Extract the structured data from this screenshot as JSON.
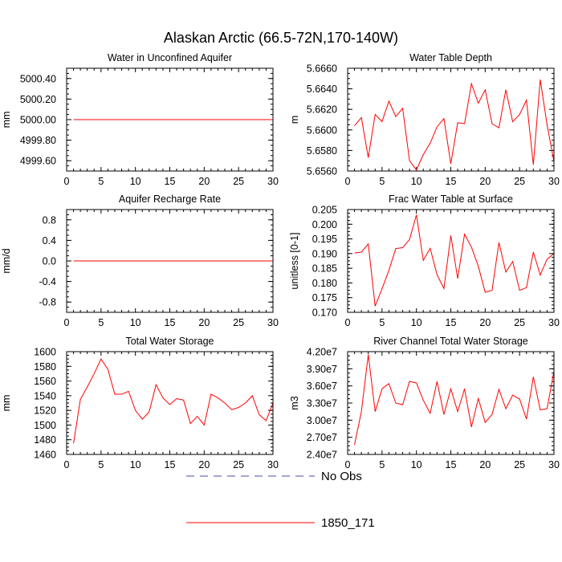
{
  "figure": {
    "title": "Alaskan Arctic (66.5-72N,170-140W)"
  },
  "legend": {
    "entries": [
      {
        "label": "No Obs",
        "color": "#4a4aa8",
        "style": "dashed"
      },
      {
        "label": "1850_171",
        "color": "#ff0000",
        "style": "solid"
      }
    ]
  },
  "chart_data": [
    {
      "type": "line",
      "title": "Water in Unconfined Aquifer",
      "ylabel": "mm",
      "xlim": [
        0,
        30
      ],
      "ylim": [
        4999.5,
        5000.5
      ],
      "xticks": [
        0,
        5,
        10,
        15,
        20,
        25,
        30
      ],
      "yticks": [
        4999.6,
        4999.8,
        5000.0,
        5000.2,
        5000.4
      ],
      "ytick_labels": [
        "4999.60",
        "4999.80",
        "5000.00",
        "5000.20",
        "5000.40"
      ],
      "series": [
        {
          "name": "1850_171",
          "x": [
            1,
            30
          ],
          "values": [
            5000.0,
            5000.0
          ]
        }
      ]
    },
    {
      "type": "line",
      "title": "Water Table Depth",
      "ylabel": "m",
      "xlim": [
        0,
        30
      ],
      "ylim": [
        5.656,
        5.666
      ],
      "xticks": [
        0,
        5,
        10,
        15,
        20,
        25,
        30
      ],
      "yticks": [
        5.656,
        5.658,
        5.66,
        5.662,
        5.664,
        5.666
      ],
      "ytick_labels": [
        "5.6560",
        "5.6580",
        "5.6600",
        "5.6620",
        "5.6640",
        "5.6660"
      ],
      "series": [
        {
          "name": "1850_171",
          "x": [
            1,
            2,
            3,
            4,
            5,
            6,
            7,
            8,
            9,
            10,
            11,
            12,
            13,
            14,
            15,
            16,
            17,
            18,
            19,
            20,
            21,
            22,
            23,
            24,
            25,
            26,
            27,
            28,
            29,
            30
          ],
          "values": [
            5.6604,
            5.6612,
            5.6573,
            5.6615,
            5.6608,
            5.6628,
            5.6613,
            5.6621,
            5.657,
            5.6561,
            5.6576,
            5.6587,
            5.6603,
            5.6611,
            5.6567,
            5.6607,
            5.6606,
            5.6645,
            5.6626,
            5.6639,
            5.6606,
            5.6602,
            5.6639,
            5.6608,
            5.6615,
            5.6629,
            5.6566,
            5.6649,
            5.6605,
            5.6569
          ]
        }
      ]
    },
    {
      "type": "line",
      "title": "Aquifer Recharge Rate",
      "ylabel": "mm/d",
      "xlim": [
        0,
        30
      ],
      "ylim": [
        -1.0,
        1.0
      ],
      "xticks": [
        0,
        5,
        10,
        15,
        20,
        25,
        30
      ],
      "yticks": [
        -0.8,
        -0.4,
        0.0,
        0.4,
        0.8
      ],
      "ytick_labels": [
        "-0.8",
        "-0.4",
        "0.0",
        "0.4",
        "0.8"
      ],
      "series": [
        {
          "name": "1850_171",
          "x": [
            1,
            30
          ],
          "values": [
            0.0,
            0.0
          ]
        }
      ]
    },
    {
      "type": "line",
      "title": "Frac Water Table at Surface",
      "ylabel": "unitless [0-1]",
      "xlim": [
        0,
        30
      ],
      "ylim": [
        0.17,
        0.205
      ],
      "xticks": [
        0,
        5,
        10,
        15,
        20,
        25,
        30
      ],
      "yticks": [
        0.17,
        0.175,
        0.18,
        0.185,
        0.19,
        0.195,
        0.2,
        0.205
      ],
      "ytick_labels": [
        "0.170",
        "0.175",
        "0.180",
        "0.185",
        "0.190",
        "0.195",
        "0.200",
        "0.205"
      ],
      "series": [
        {
          "name": "1850_171",
          "x": [
            1,
            2,
            3,
            4,
            5,
            6,
            7,
            8,
            9,
            10,
            11,
            12,
            13,
            14,
            15,
            16,
            17,
            18,
            19,
            20,
            21,
            22,
            23,
            24,
            25,
            26,
            27,
            28,
            29,
            30
          ],
          "values": [
            0.1902,
            0.1905,
            0.1933,
            0.1721,
            0.178,
            0.1843,
            0.1917,
            0.192,
            0.1948,
            0.2032,
            0.1877,
            0.1918,
            0.1828,
            0.1781,
            0.1962,
            0.1815,
            0.1966,
            0.1922,
            0.1857,
            0.1768,
            0.1775,
            0.1938,
            0.1837,
            0.1873,
            0.1775,
            0.1784,
            0.1905,
            0.1827,
            0.1881,
            0.19
          ]
        }
      ]
    },
    {
      "type": "line",
      "title": "Total Water Storage",
      "ylabel": "mm",
      "xlim": [
        0,
        30
      ],
      "ylim": [
        1460,
        1600
      ],
      "xticks": [
        0,
        5,
        10,
        15,
        20,
        25,
        30
      ],
      "yticks": [
        1460,
        1480,
        1500,
        1520,
        1540,
        1560,
        1580,
        1600
      ],
      "ytick_labels": [
        "1460",
        "1480",
        "1500",
        "1520",
        "1540",
        "1560",
        "1580",
        "1600"
      ],
      "series": [
        {
          "name": "1850_171",
          "x": [
            1,
            2,
            3,
            4,
            5,
            6,
            7,
            8,
            9,
            10,
            11,
            12,
            13,
            14,
            15,
            16,
            17,
            18,
            19,
            20,
            21,
            22,
            23,
            24,
            25,
            26,
            27,
            28,
            29,
            30
          ],
          "values": [
            1475,
            1535,
            1552,
            1570,
            1590,
            1576,
            1542,
            1542,
            1546,
            1520,
            1508,
            1518,
            1555,
            1537,
            1528,
            1536,
            1534,
            1502,
            1512,
            1500,
            1542,
            1537,
            1530,
            1521,
            1524,
            1530,
            1540,
            1514,
            1506,
            1530
          ]
        }
      ]
    },
    {
      "type": "line",
      "title": "River Channel Total Water Storage",
      "ylabel": "m3",
      "xlim": [
        0,
        30
      ],
      "ylim": [
        24000000,
        42000000
      ],
      "xticks": [
        0,
        5,
        10,
        15,
        20,
        25,
        30
      ],
      "yticks": [
        24000000,
        27000000,
        30000000,
        33000000,
        36000000,
        39000000,
        42000000
      ],
      "ytick_labels": [
        "2.40e7",
        "2.70e7",
        "3.00e7",
        "3.30e7",
        "3.60e7",
        "3.90e7",
        "4.20e7"
      ],
      "series": [
        {
          "name": "1850_171",
          "x": [
            1,
            2,
            3,
            4,
            5,
            6,
            7,
            8,
            9,
            10,
            11,
            12,
            13,
            14,
            15,
            16,
            17,
            18,
            19,
            20,
            21,
            22,
            23,
            24,
            25,
            26,
            27,
            28,
            29,
            30
          ],
          "values": [
            25700000,
            31500000,
            41500000,
            31500000,
            35500000,
            36400000,
            33000000,
            32700000,
            36800000,
            36500000,
            33500000,
            31200000,
            36800000,
            31000000,
            35500000,
            31500000,
            35500000,
            28800000,
            33800000,
            29600000,
            31000000,
            35400000,
            32000000,
            34400000,
            33700000,
            30200000,
            37600000,
            31800000,
            32000000,
            38600000
          ]
        }
      ]
    }
  ]
}
